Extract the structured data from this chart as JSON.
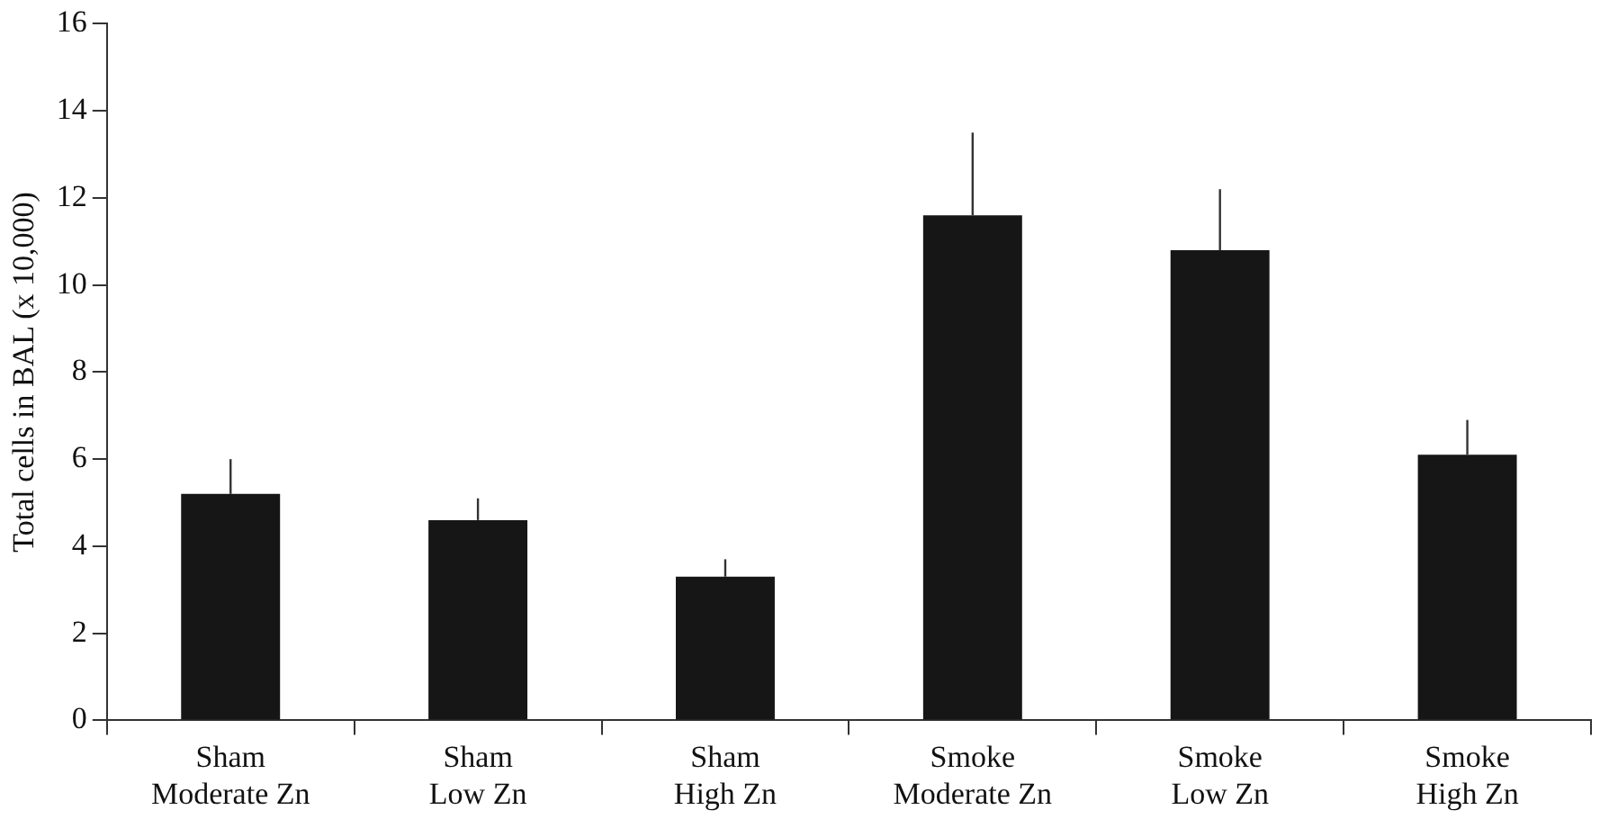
{
  "chart_data": {
    "type": "bar",
    "ylabel": "Total cells in BAL (x 10,000)",
    "categories": [
      "Sham\nModerate Zn",
      "Sham\nLow Zn",
      "Sham\nHigh Zn",
      "Smoke\nModerate Zn",
      "Smoke\nLow Zn",
      "Smoke\nHigh Zn"
    ],
    "values": [
      5.2,
      4.6,
      3.3,
      11.6,
      10.8,
      6.1
    ],
    "errors": [
      [
        5.2,
        6.0
      ],
      [
        4.6,
        5.1
      ],
      [
        3.3,
        3.7
      ],
      [
        11.6,
        13.5
      ],
      [
        10.8,
        12.2
      ],
      [
        6.1,
        6.9
      ]
    ],
    "color": "#161616",
    "ylim": [
      0,
      16
    ],
    "yticks": [
      0,
      2,
      4,
      6,
      8,
      10,
      12,
      14,
      16
    ],
    "grid": false,
    "legend": false
  }
}
